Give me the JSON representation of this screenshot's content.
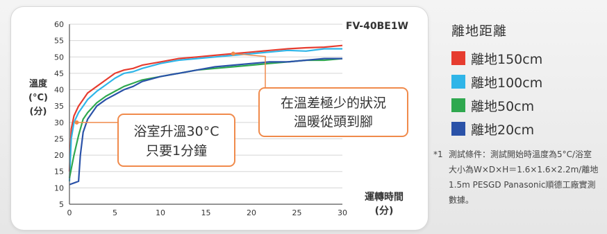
{
  "chart_data": {
    "type": "line",
    "model": "FV-40BE1W",
    "xlabel": "運轉時間\n(分)",
    "ylabel": "溫度\n(°C)\n(分)",
    "xlim": [
      0,
      30
    ],
    "ylim": [
      5,
      60
    ],
    "xticks": [
      0,
      5,
      10,
      15,
      20,
      25,
      30
    ],
    "yticks": [
      5,
      10,
      15,
      20,
      25,
      30,
      35,
      40,
      45,
      50,
      55,
      60
    ],
    "legend_title": "離地距離",
    "series": [
      {
        "name": "離地150cm",
        "color": "#e63c2f",
        "x": [
          0,
          0.2,
          0.5,
          1,
          1.5,
          2,
          3,
          4,
          5,
          6,
          7,
          8,
          10,
          12,
          14,
          16,
          18,
          20,
          22,
          24,
          26,
          28,
          30
        ],
        "y": [
          15,
          28,
          32,
          35,
          37,
          39,
          41,
          43,
          45,
          46,
          46.5,
          47.5,
          48.5,
          49.5,
          50,
          50.5,
          51,
          51.5,
          52,
          52.5,
          52.8,
          53,
          53.5
        ]
      },
      {
        "name": "離地100cm",
        "color": "#2fb5e8",
        "x": [
          0,
          0.2,
          0.5,
          1,
          1.5,
          2,
          3,
          4,
          5,
          6,
          7,
          8,
          10,
          12,
          14,
          16,
          18,
          20,
          22,
          24,
          26,
          28,
          30
        ],
        "y": [
          12,
          25,
          30,
          33,
          35,
          37,
          39.5,
          41.5,
          43.5,
          45,
          45.5,
          46.5,
          48,
          49,
          49.5,
          50,
          50.5,
          51,
          51.5,
          52,
          51.8,
          52.5,
          52.5
        ]
      },
      {
        "name": "離地50cm",
        "color": "#2fa84f",
        "x": [
          0,
          0.5,
          1,
          1.5,
          2,
          3,
          4,
          5,
          6,
          7,
          8,
          10,
          12,
          14,
          16,
          18,
          20,
          22,
          24,
          26,
          28,
          30
        ],
        "y": [
          13,
          20,
          26,
          31,
          33,
          36,
          38,
          39.5,
          41,
          42,
          43,
          44,
          45,
          46,
          46.5,
          47,
          47.5,
          48,
          48.5,
          49,
          49,
          49.5
        ]
      },
      {
        "name": "離地20cm",
        "color": "#2a52a8",
        "x": [
          0,
          0.5,
          1,
          1.2,
          1.5,
          2,
          3,
          4,
          5,
          6,
          7,
          8,
          10,
          12,
          14,
          16,
          18,
          20,
          22,
          24,
          26,
          28,
          30
        ],
        "y": [
          11,
          11.5,
          12,
          20,
          27,
          31,
          35,
          37,
          38.5,
          40,
          41,
          42.5,
          44,
          45,
          46,
          47,
          47.5,
          48,
          48.5,
          48.5,
          49,
          49.5,
          49.5
        ]
      }
    ],
    "annotations": [
      {
        "text_lines": [
          "浴室升溫30°C",
          "只要1分鐘"
        ]
      },
      {
        "text_lines": [
          "在溫差極少的狀況",
          "溫暖從頭到腳"
        ]
      }
    ]
  },
  "note": {
    "mark": "*1",
    "text": "測試條件：測試開始時溫度為5°C/浴室大小為W×D×H＝1.6×1.6×2.2m/離地1.5m PESGD Panasonic順德工廠實測數據。"
  }
}
